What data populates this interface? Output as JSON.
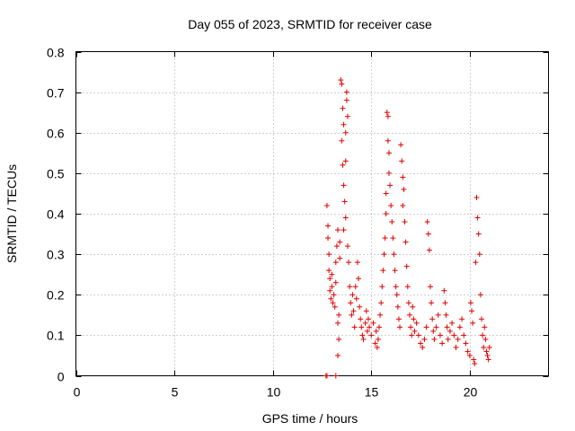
{
  "chart_data": {
    "type": "scatter",
    "title": "Day 055 of 2023, SRMTID for receiver case",
    "xlabel": "GPS time / hours",
    "ylabel": "SRMTID / TECUs",
    "xlim": [
      0,
      24
    ],
    "ylim": [
      0,
      0.8
    ],
    "grid": true,
    "marker": "plus",
    "color": "#e00000",
    "xticks": [
      0,
      5,
      10,
      15,
      20
    ],
    "xtick_labels": [
      "0",
      "5",
      "10",
      "15",
      "20"
    ],
    "yticks": [
      0,
      0.1,
      0.2,
      0.3,
      0.4,
      0.5,
      0.6,
      0.7,
      0.8
    ],
    "ytick_labels": [
      "0",
      "0.1",
      "0.2",
      "0.3",
      "0.4",
      "0.5",
      "0.6",
      "0.7",
      "0.8"
    ],
    "series": [
      {
        "name": "SRMTID",
        "points": [
          [
            12.7,
            0.0
          ],
          [
            12.75,
            0.0
          ],
          [
            13.2,
            0.0
          ],
          [
            12.75,
            0.42
          ],
          [
            12.8,
            0.37
          ],
          [
            12.8,
            0.34
          ],
          [
            12.85,
            0.3
          ],
          [
            12.85,
            0.26
          ],
          [
            12.9,
            0.24
          ],
          [
            12.9,
            0.21
          ],
          [
            12.95,
            0.19
          ],
          [
            13.0,
            0.25
          ],
          [
            13.0,
            0.22
          ],
          [
            13.05,
            0.18
          ],
          [
            13.1,
            0.2
          ],
          [
            13.15,
            0.17
          ],
          [
            13.2,
            0.23
          ],
          [
            13.2,
            0.28
          ],
          [
            13.25,
            0.32
          ],
          [
            13.3,
            0.36
          ],
          [
            13.35,
            0.15
          ],
          [
            13.3,
            0.13
          ],
          [
            13.35,
            0.09
          ],
          [
            13.3,
            0.05
          ],
          [
            13.4,
            0.29
          ],
          [
            13.4,
            0.33
          ],
          [
            13.45,
            0.73
          ],
          [
            13.5,
            0.72
          ],
          [
            13.55,
            0.66
          ],
          [
            13.6,
            0.62
          ],
          [
            13.5,
            0.58
          ],
          [
            13.55,
            0.52
          ],
          [
            13.6,
            0.47
          ],
          [
            13.65,
            0.43
          ],
          [
            13.7,
            0.39
          ],
          [
            13.75,
            0.7
          ],
          [
            13.75,
            0.68
          ],
          [
            13.8,
            0.64
          ],
          [
            13.7,
            0.6
          ],
          [
            13.7,
            0.53
          ],
          [
            13.6,
            0.36
          ],
          [
            13.8,
            0.32
          ],
          [
            13.85,
            0.28
          ],
          [
            13.9,
            0.22
          ],
          [
            13.95,
            0.18
          ],
          [
            14.0,
            0.15
          ],
          [
            14.05,
            0.2
          ],
          [
            14.1,
            0.16
          ],
          [
            14.15,
            0.12
          ],
          [
            14.2,
            0.22
          ],
          [
            14.25,
            0.19
          ],
          [
            14.3,
            0.28
          ],
          [
            14.35,
            0.24
          ],
          [
            14.4,
            0.17
          ],
          [
            14.45,
            0.14
          ],
          [
            14.5,
            0.12
          ],
          [
            14.55,
            0.1
          ],
          [
            14.6,
            0.09
          ],
          [
            14.7,
            0.13
          ],
          [
            14.75,
            0.16
          ],
          [
            14.8,
            0.11
          ],
          [
            14.85,
            0.14
          ],
          [
            14.9,
            0.12
          ],
          [
            15.0,
            0.1
          ],
          [
            15.1,
            0.13
          ],
          [
            15.2,
            0.08
          ],
          [
            15.25,
            0.11
          ],
          [
            15.3,
            0.07
          ],
          [
            15.35,
            0.09
          ],
          [
            15.4,
            0.12
          ],
          [
            15.45,
            0.15
          ],
          [
            15.5,
            0.18
          ],
          [
            15.55,
            0.22
          ],
          [
            15.6,
            0.26
          ],
          [
            15.65,
            0.3
          ],
          [
            15.7,
            0.34
          ],
          [
            15.75,
            0.4
          ],
          [
            15.75,
            0.45
          ],
          [
            15.8,
            0.65
          ],
          [
            15.85,
            0.64
          ],
          [
            15.85,
            0.58
          ],
          [
            15.9,
            0.55
          ],
          [
            15.9,
            0.5
          ],
          [
            15.95,
            0.47
          ],
          [
            16.0,
            0.42
          ],
          [
            16.05,
            0.38
          ],
          [
            16.1,
            0.34
          ],
          [
            16.15,
            0.3
          ],
          [
            16.2,
            0.26
          ],
          [
            16.25,
            0.22
          ],
          [
            16.3,
            0.2
          ],
          [
            16.35,
            0.17
          ],
          [
            16.4,
            0.14
          ],
          [
            16.45,
            0.12
          ],
          [
            16.5,
            0.57
          ],
          [
            16.55,
            0.53
          ],
          [
            16.6,
            0.49
          ],
          [
            16.65,
            0.46
          ],
          [
            16.6,
            0.42
          ],
          [
            16.7,
            0.38
          ],
          [
            16.75,
            0.33
          ],
          [
            16.8,
            0.27
          ],
          [
            16.85,
            0.22
          ],
          [
            16.9,
            0.18
          ],
          [
            16.95,
            0.15
          ],
          [
            17.0,
            0.12
          ],
          [
            17.05,
            0.1
          ],
          [
            17.1,
            0.17
          ],
          [
            17.15,
            0.14
          ],
          [
            17.2,
            0.11
          ],
          [
            17.3,
            0.13
          ],
          [
            17.4,
            0.1
          ],
          [
            17.5,
            0.08
          ],
          [
            17.6,
            0.07
          ],
          [
            17.7,
            0.09
          ],
          [
            17.8,
            0.12
          ],
          [
            17.85,
            0.38
          ],
          [
            17.9,
            0.35
          ],
          [
            17.95,
            0.31
          ],
          [
            18.0,
            0.22
          ],
          [
            18.05,
            0.18
          ],
          [
            18.1,
            0.14
          ],
          [
            18.15,
            0.11
          ],
          [
            18.2,
            0.09
          ],
          [
            18.3,
            0.12
          ],
          [
            18.4,
            0.15
          ],
          [
            18.5,
            0.1
          ],
          [
            18.6,
            0.08
          ],
          [
            18.7,
            0.21
          ],
          [
            18.75,
            0.18
          ],
          [
            18.8,
            0.15
          ],
          [
            18.85,
            0.12
          ],
          [
            18.9,
            0.09
          ],
          [
            19.0,
            0.11
          ],
          [
            19.1,
            0.13
          ],
          [
            19.2,
            0.1
          ],
          [
            19.3,
            0.07
          ],
          [
            19.4,
            0.09
          ],
          [
            19.5,
            0.12
          ],
          [
            19.6,
            0.14
          ],
          [
            19.7,
            0.1
          ],
          [
            19.8,
            0.08
          ],
          [
            19.9,
            0.06
          ],
          [
            20.0,
            0.05
          ],
          [
            20.05,
            0.18
          ],
          [
            20.1,
            0.16
          ],
          [
            20.15,
            0.13
          ],
          [
            20.2,
            0.04
          ],
          [
            20.25,
            0.03
          ],
          [
            20.3,
            0.28
          ],
          [
            20.35,
            0.44
          ],
          [
            20.4,
            0.39
          ],
          [
            20.45,
            0.35
          ],
          [
            20.5,
            0.3
          ],
          [
            20.55,
            0.2
          ],
          [
            20.6,
            0.14
          ],
          [
            20.65,
            0.1
          ],
          [
            20.7,
            0.07
          ],
          [
            20.75,
            0.12
          ],
          [
            20.8,
            0.09
          ],
          [
            20.85,
            0.06
          ],
          [
            20.9,
            0.05
          ],
          [
            20.95,
            0.04
          ],
          [
            21.0,
            0.07
          ]
        ]
      }
    ]
  }
}
